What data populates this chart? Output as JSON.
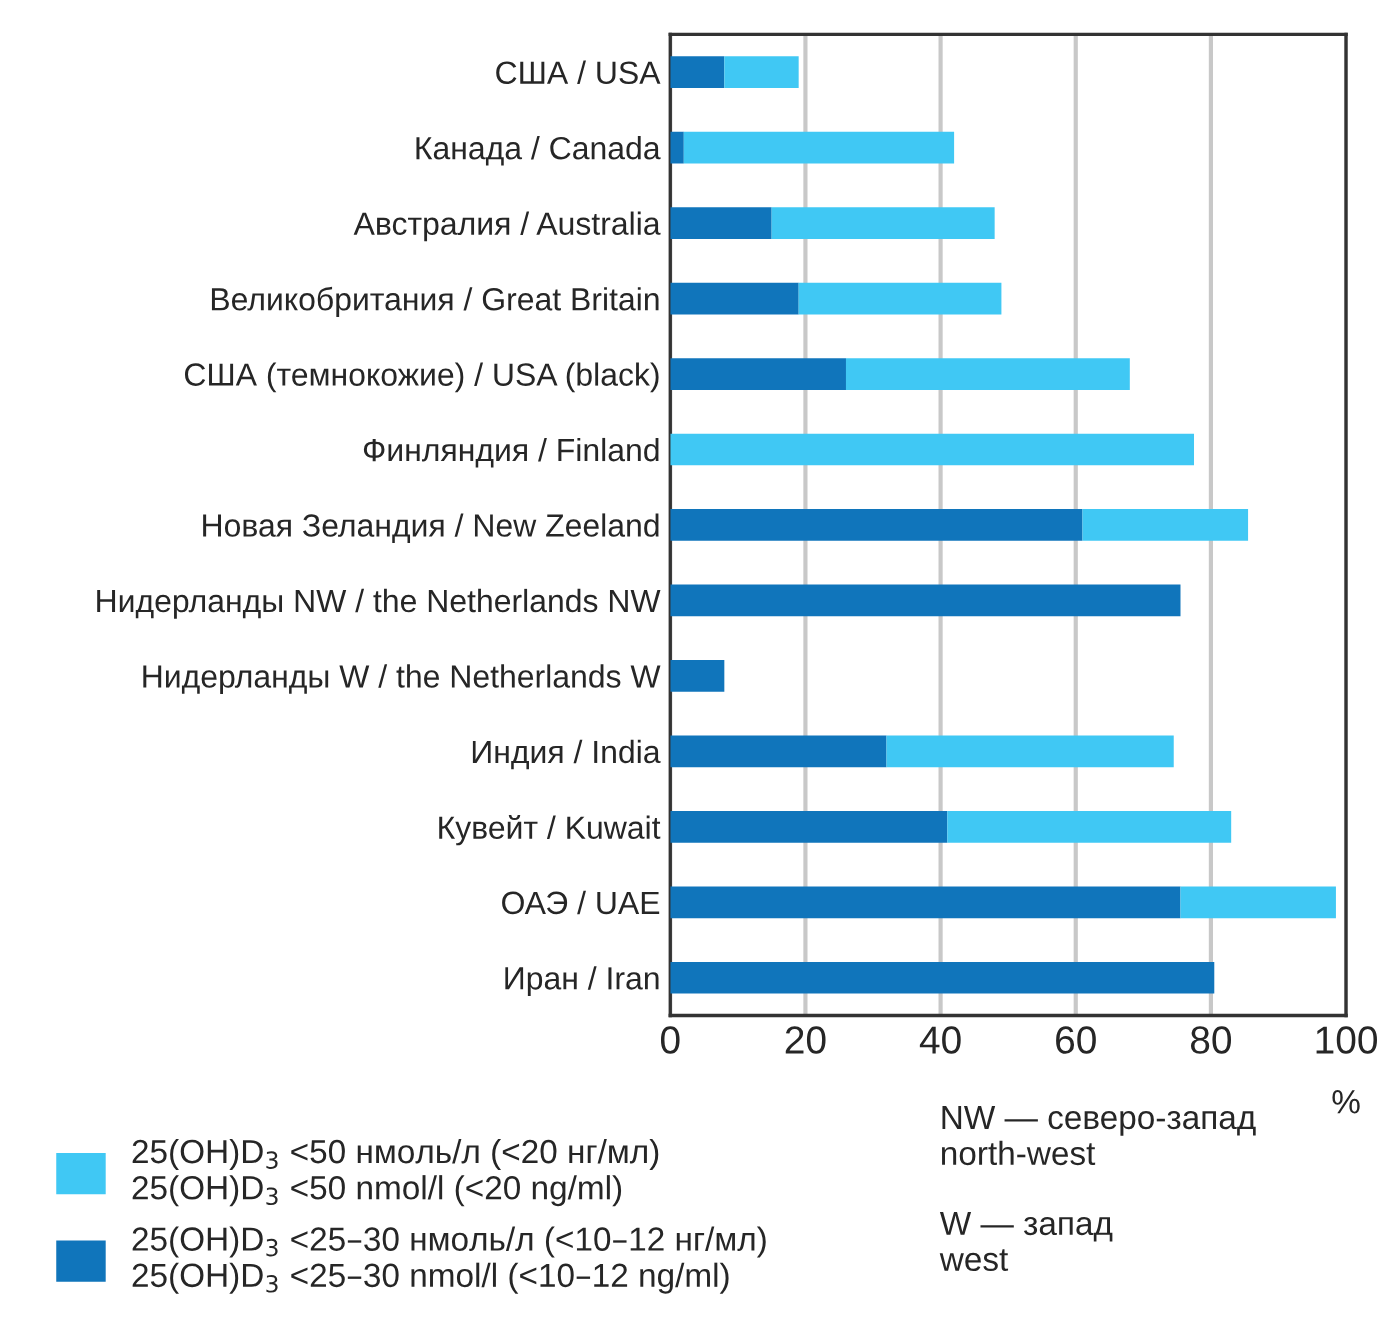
{
  "chart_data": {
    "type": "bar",
    "orientation": "horizontal",
    "stacked": true,
    "categories": [
      "США / USA",
      "Канада / Canada",
      "Австралия / Australia",
      "Великобритания / Great Britain",
      "США (темнокожие) / USA (black)",
      "Финляндия / Finland",
      "Новая Зеландия / New Zeeland",
      "Нидерланды NW / the Netherlands NW",
      "Нидерланды W / the Netherlands W",
      "Индия / India",
      "Кувейт / Kuwait",
      "ОАЭ / UAE",
      "Иран / Iran"
    ],
    "series": [
      {
        "name": "25(OH)D$_{3}$ <25–30 нмоль/л (<10–12 нг/мл)\n25(OH)D$_{3}$ <25–30 nmol/l (<10–12 ng/ml)",
        "color": "#1075bb",
        "values": [
          8,
          2,
          15,
          19,
          26,
          0,
          61,
          75.5,
          8,
          32,
          41,
          75.5,
          80.5
        ]
      },
      {
        "name": "25(OH)D$_{3}$ <50 нмоль/л (<20 нг/мл)\n25(OH)D$_{3}$ <50 nmol/l (<20 ng/ml)",
        "color": "#40c8f4",
        "values": [
          11,
          40,
          33,
          30,
          42,
          77.5,
          24.5,
          0,
          0,
          42.5,
          42,
          23,
          0
        ]
      }
    ],
    "xlim": [
      0,
      100
    ],
    "xticks": [
      0,
      20,
      40,
      60,
      80,
      100
    ],
    "xlabel": "%",
    "grid": "x",
    "legend": "bottom left",
    "annotations": [
      "NW — северо-запад\nnorth-west",
      "W — запад\nwest"
    ]
  }
}
